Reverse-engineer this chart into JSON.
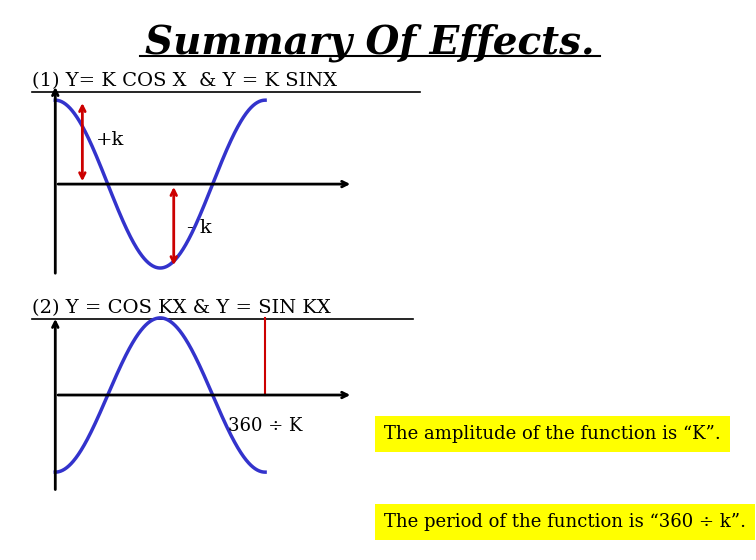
{
  "title": "Summary Of Effects.",
  "title_fontsize": 28,
  "bg_color": "#ffffff",
  "section1_label": "(1) Y= K COS X  & Y = K SINX",
  "section2_label": "(2) Y = COS KX & Y = SIN KX",
  "amplitude_note": "The amplitude of the function is “K”.",
  "period_note": "The period of the function is “360 ÷ k”.",
  "curve_color": "#3333cc",
  "arrow_color": "#cc0000",
  "yellow_bg": "#ffff00",
  "note_fontsize": 13,
  "label_fontsize": 14
}
